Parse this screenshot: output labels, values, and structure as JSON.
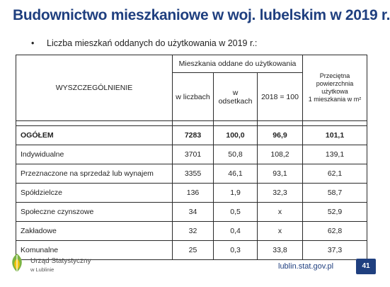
{
  "title": "Budownictwo mieszkaniowe w woj. lubelskim w 2019 r.",
  "bullet": "•",
  "subtitle": "Liczba mieszkań oddanych do użytkowania w 2019 r.:",
  "table": {
    "header_desc": "WYSZCZEGÓLNIENIE",
    "header_group": "Mieszkania oddane do użytkowania",
    "header_count": "w liczbach",
    "header_percent_line1": "w",
    "header_percent_line2": "odsetkach",
    "header_index": "2018 = 100",
    "header_area_line1": "Przeciętna",
    "header_area_line2": "powierzchnia",
    "header_area_line3": "użytkowa",
    "header_area_line4": "1 mieszkania w m²",
    "rows": [
      {
        "label": "OGÓŁEM",
        "count": "7283",
        "percent": "100,0",
        "index": "96,9",
        "area": "101,1"
      },
      {
        "label": "Indywidualne",
        "count": "3701",
        "percent": "50,8",
        "index": "108,2",
        "area": "139,1"
      },
      {
        "label": "Przeznaczone na sprzedaż lub wynajem",
        "count": "3355",
        "percent": "46,1",
        "index": "93,1",
        "area": "62,1"
      },
      {
        "label": "Spółdzielcze",
        "count": "136",
        "percent": "1,9",
        "index": "32,3",
        "area": "58,7"
      },
      {
        "label": "Społeczne czynszowe",
        "count": "34",
        "percent": "0,5",
        "index": "x",
        "area": "52,9"
      },
      {
        "label": "Zakładowe",
        "count": "32",
        "percent": "0,4",
        "index": "x",
        "area": "62,8"
      },
      {
        "label": "Komunalne",
        "count": "25",
        "percent": "0,3",
        "index": "33,8",
        "area": "37,3"
      }
    ]
  },
  "footer": {
    "logo_line1": "Urząd Statystyczny",
    "logo_line2": "w Lublinie",
    "url": "lublin.stat.gov.pl",
    "page_number": "41"
  },
  "colors": {
    "brand_blue": "#1f3f7f",
    "logo_green": "#7cb342",
    "logo_yellow": "#f4c20d"
  }
}
